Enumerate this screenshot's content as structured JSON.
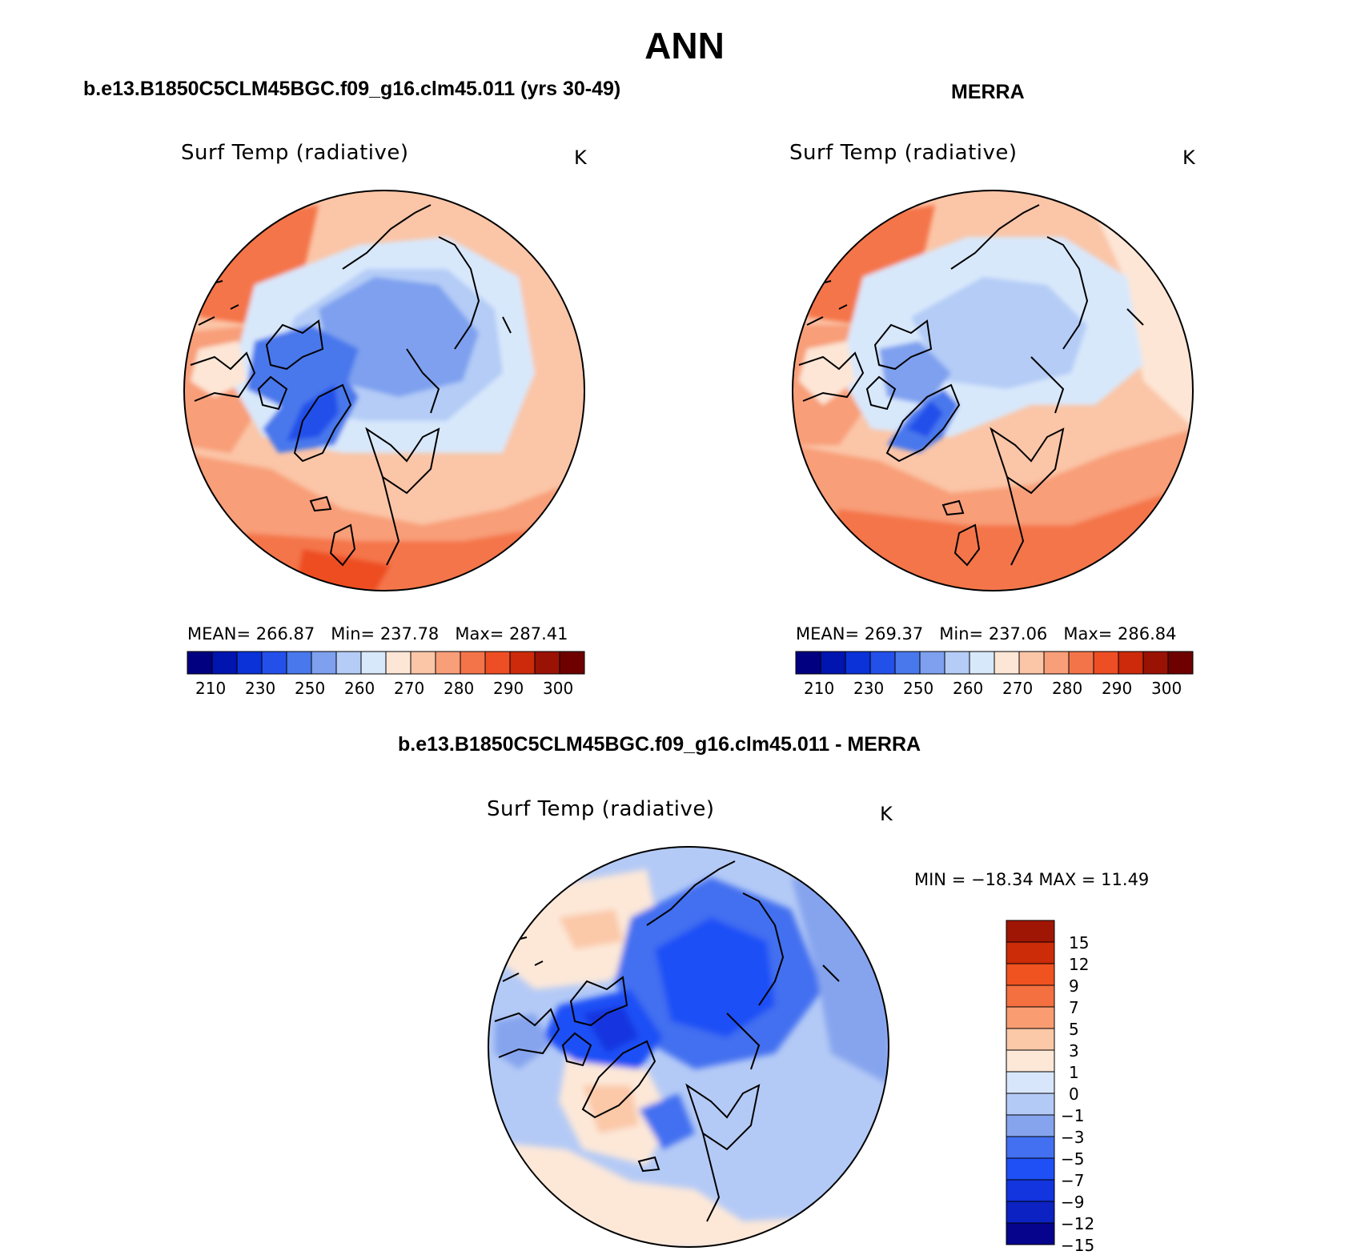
{
  "page_title": "ANN",
  "panels": [
    {
      "id": "model",
      "heading": "b.e13.B1850C5CLM45BGC.f09_g16.clm45.011 (yrs 30-49)",
      "variable": "Surf Temp (radiative)",
      "units": "K",
      "stats": {
        "mean_label": "MEAN=",
        "mean": "266.87",
        "min_label": "Min=",
        "min": "237.78",
        "max_label": "Max=",
        "max": "287.41"
      }
    },
    {
      "id": "obs",
      "heading": "MERRA",
      "variable": "Surf Temp (radiative)",
      "units": "K",
      "stats": {
        "mean_label": "MEAN=",
        "mean": "269.37",
        "min_label": "Min=",
        "min": "237.06",
        "max_label": "Max=",
        "max": "286.84"
      }
    },
    {
      "id": "diff",
      "heading": "b.e13.B1850C5CLM45BGC.f09_g16.clm45.011 - MERRA",
      "variable": "Surf Temp (radiative)",
      "units": "K",
      "minmax_text": "MIN = −18.34 MAX =   11.49"
    }
  ],
  "chart_data": [
    {
      "type": "heatmap",
      "title": "b.e13.B1850C5CLM45BGC.f09_g16.clm45.011 (yrs 30-49)",
      "variable": "Surf Temp (radiative)",
      "units": "K",
      "projection": "north polar stereographic",
      "mean": 266.87,
      "min": 237.78,
      "max": 287.41,
      "contour_levels": [
        205,
        210,
        215,
        220,
        225,
        230,
        235,
        240,
        245,
        250,
        255,
        260,
        265,
        270,
        275,
        280,
        285,
        290,
        295,
        300,
        305
      ],
      "colorbar_tick_labels": [
        "210",
        "230",
        "250",
        "260",
        "270",
        "280",
        "290",
        "300"
      ]
    },
    {
      "type": "heatmap",
      "title": "MERRA",
      "variable": "Surf Temp (radiative)",
      "units": "K",
      "projection": "north polar stereographic",
      "mean": 269.37,
      "min": 237.06,
      "max": 286.84,
      "contour_levels": [
        205,
        210,
        215,
        220,
        225,
        230,
        235,
        240,
        245,
        250,
        255,
        260,
        265,
        270,
        275,
        280,
        285,
        290,
        295,
        300,
        305
      ],
      "colorbar_tick_labels": [
        "210",
        "230",
        "250",
        "260",
        "270",
        "280",
        "290",
        "300"
      ]
    },
    {
      "type": "heatmap",
      "title": "b.e13.B1850C5CLM45BGC.f09_g16.clm45.011 - MERRA",
      "variable": "Surf Temp (radiative)",
      "units": "K",
      "projection": "north polar stereographic",
      "min": -18.34,
      "max": 11.49,
      "contour_levels": [
        -15,
        -12,
        -9,
        -7,
        -5,
        -3,
        -1,
        0,
        1,
        3,
        5,
        7,
        9,
        12,
        15
      ],
      "colorbar_tick_labels": [
        "15",
        "12",
        "9",
        "7",
        "5",
        "3",
        "1",
        "0",
        "−1",
        "−3",
        "−5",
        "−7",
        "−9",
        "−12",
        "−15"
      ]
    }
  ],
  "colors": {
    "abs_scale": [
      "#000080",
      "#0015b0",
      "#0a32d8",
      "#2450ea",
      "#4878ec",
      "#7ea0ef",
      "#b4ccf6",
      "#d8e8fb",
      "#fde6d6",
      "#fbc5a7",
      "#f89e78",
      "#f4744a",
      "#ee4e23",
      "#cc2a0a",
      "#9a1204",
      "#6e0000"
    ],
    "diff_scale": [
      "#06038c",
      "#0c22c2",
      "#1235e0",
      "#1e50f6",
      "#4270f0",
      "#86a4ee",
      "#b4caf6",
      "#d8e6fb",
      "#fde8d8",
      "#fbc8a8",
      "#f99c72",
      "#f47040",
      "#f05220",
      "#cc2c08",
      "#a01604"
    ],
    "coast": "#000000"
  }
}
